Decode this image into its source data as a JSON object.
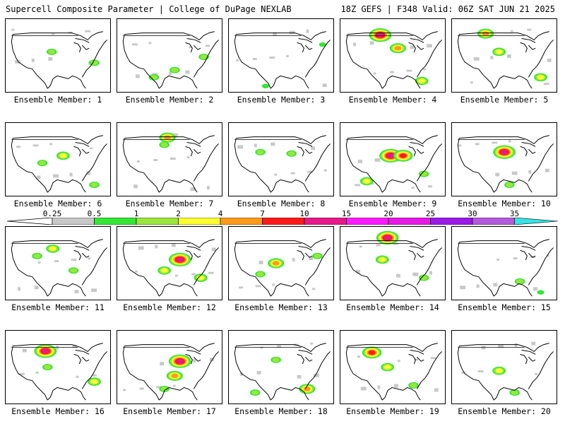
{
  "header": {
    "title_left": "Supercell Composite Parameter | College of DuPage NEXLAB",
    "title_right": "18Z GEFS | F348 Valid: 06Z SAT JUN 21 2025"
  },
  "member_label_prefix": "Ensemble Member:",
  "members": [
    {
      "number": "1",
      "label": "Ensemble Member: 1",
      "blobs": [
        [
          0.44,
          0.45,
          2
        ],
        [
          0.85,
          0.6,
          2
        ]
      ]
    },
    {
      "number": "2",
      "label": "Ensemble Member: 2",
      "blobs": [
        [
          0.83,
          0.52,
          2
        ],
        [
          0.55,
          0.7,
          2
        ],
        [
          0.35,
          0.8,
          2
        ]
      ]
    },
    {
      "number": "3",
      "label": "Ensemble Member: 3",
      "blobs": [
        [
          0.9,
          0.35,
          1
        ],
        [
          0.35,
          0.92,
          1
        ]
      ]
    },
    {
      "number": "4",
      "label": "Ensemble Member: 4",
      "blobs": [
        [
          0.38,
          0.22,
          6
        ],
        [
          0.55,
          0.4,
          4
        ],
        [
          0.78,
          0.85,
          3
        ]
      ]
    },
    {
      "number": "5",
      "label": "Ensemble Member: 5",
      "blobs": [
        [
          0.32,
          0.2,
          4
        ],
        [
          0.45,
          0.45,
          3
        ],
        [
          0.85,
          0.8,
          3
        ]
      ]
    },
    {
      "number": "6",
      "label": "Ensemble Member: 6",
      "blobs": [
        [
          0.55,
          0.45,
          3
        ],
        [
          0.35,
          0.55,
          2
        ],
        [
          0.85,
          0.85,
          2
        ]
      ]
    },
    {
      "number": "7",
      "label": "Ensemble Member: 7",
      "blobs": [
        [
          0.48,
          0.2,
          4
        ],
        [
          0.45,
          0.3,
          2
        ]
      ]
    },
    {
      "number": "8",
      "label": "Ensemble Member: 8",
      "blobs": [
        [
          0.6,
          0.42,
          2
        ],
        [
          0.3,
          0.4,
          2
        ]
      ]
    },
    {
      "number": "9",
      "label": "Ensemble Member: 9",
      "blobs": [
        [
          0.48,
          0.45,
          6
        ],
        [
          0.6,
          0.45,
          5
        ],
        [
          0.25,
          0.8,
          3
        ],
        [
          0.8,
          0.7,
          2
        ]
      ]
    },
    {
      "number": "10",
      "label": "Ensemble Member: 10",
      "blobs": [
        [
          0.5,
          0.4,
          6
        ],
        [
          0.55,
          0.85,
          2
        ]
      ]
    },
    {
      "number": "11",
      "label": "Ensemble Member: 11",
      "blobs": [
        [
          0.45,
          0.3,
          3
        ],
        [
          0.3,
          0.4,
          2
        ],
        [
          0.65,
          0.6,
          2
        ]
      ]
    },
    {
      "number": "12",
      "label": "Ensemble Member: 12",
      "blobs": [
        [
          0.6,
          0.45,
          6
        ],
        [
          0.8,
          0.7,
          3
        ],
        [
          0.45,
          0.6,
          3
        ]
      ]
    },
    {
      "number": "13",
      "label": "Ensemble Member: 13",
      "blobs": [
        [
          0.45,
          0.5,
          4
        ],
        [
          0.3,
          0.65,
          2
        ],
        [
          0.85,
          0.4,
          2
        ]
      ]
    },
    {
      "number": "14",
      "label": "Ensemble Member: 14",
      "blobs": [
        [
          0.45,
          0.15,
          6
        ],
        [
          0.4,
          0.45,
          3
        ],
        [
          0.8,
          0.7,
          2
        ]
      ]
    },
    {
      "number": "15",
      "label": "Ensemble Member: 15",
      "blobs": [
        [
          0.65,
          0.75,
          2
        ],
        [
          0.85,
          0.9,
          1
        ]
      ]
    },
    {
      "number": "16",
      "label": "Ensemble Member: 16",
      "blobs": [
        [
          0.38,
          0.28,
          6
        ],
        [
          0.4,
          0.5,
          2
        ],
        [
          0.85,
          0.7,
          3
        ]
      ]
    },
    {
      "number": "17",
      "label": "Ensemble Member: 17",
      "blobs": [
        [
          0.6,
          0.42,
          6
        ],
        [
          0.55,
          0.62,
          4
        ],
        [
          0.45,
          0.8,
          2
        ]
      ]
    },
    {
      "number": "18",
      "label": "Ensemble Member: 18",
      "blobs": [
        [
          0.75,
          0.8,
          4
        ],
        [
          0.25,
          0.85,
          2
        ],
        [
          0.45,
          0.4,
          2
        ]
      ]
    },
    {
      "number": "19",
      "label": "Ensemble Member: 19",
      "blobs": [
        [
          0.3,
          0.3,
          5
        ],
        [
          0.45,
          0.5,
          3
        ],
        [
          0.7,
          0.75,
          2
        ]
      ]
    },
    {
      "number": "20",
      "label": "Ensemble Member: 20",
      "blobs": [
        [
          0.45,
          0.55,
          3
        ],
        [
          0.6,
          0.85,
          2
        ]
      ]
    }
  ],
  "colorbar": {
    "ticks": [
      "0.25",
      "0.5",
      "1",
      "2",
      "4",
      "7",
      "10",
      "15",
      "20",
      "25",
      "30",
      "35"
    ],
    "colors": [
      "#c8c8c8",
      "#35e635",
      "#9ae63c",
      "#ffff33",
      "#ff9a1a",
      "#ff1a1a",
      "#e61a8a",
      "#ff1aff",
      "#e61ae6",
      "#9a1ae6",
      "#b45adc",
      "#33e6e6"
    ]
  }
}
